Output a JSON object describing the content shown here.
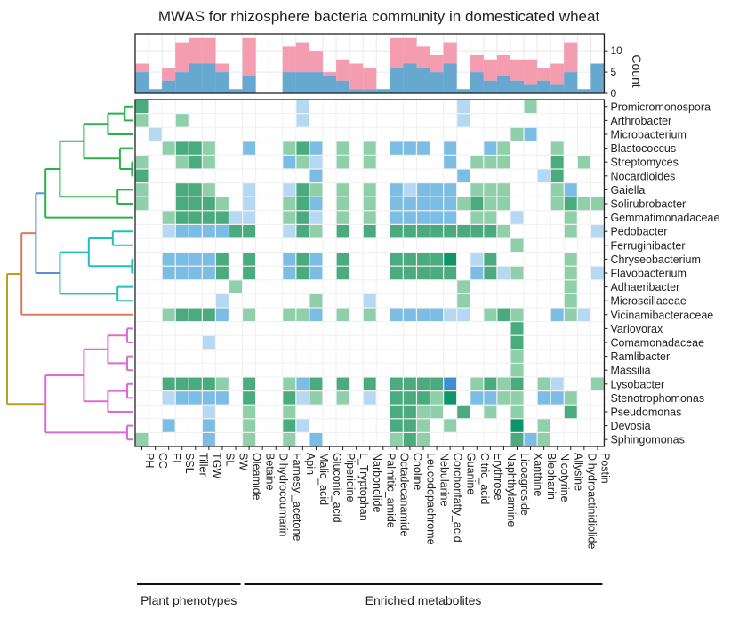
{
  "chart_data": {
    "type": "heatmap",
    "title": "MWAS for rhizosphere bacteria community in domesticated wheat",
    "count_axis": {
      "label": "Count",
      "ticks": [
        0,
        5,
        10
      ],
      "ylim": [
        0,
        14
      ]
    },
    "columns": [
      "PH",
      "CC",
      "EL",
      "SSL",
      "Tiller",
      "TGW",
      "SL",
      "SW",
      "Oleamide",
      "Betaine",
      "Dihydrocoumarin",
      "Farnesyl_acetone",
      "Apin",
      "Malic_acid",
      "Gluconic_acid",
      "Piperidine",
      "L_Tryptophan",
      "Narbonolide",
      "Palmitic_amide",
      "Octadecanamide",
      "Choline",
      "Leucodopachrome",
      "Nebularine",
      "Corchorifatty_acid",
      "Guanine",
      "Citric_acid",
      "Erythrose",
      "Naphthylamine",
      "Licoagroside",
      "Xanthine",
      "Blepharin",
      "Nicotyrine",
      "Allysine",
      "Dihydroactinidiolide",
      "Postin"
    ],
    "rows": [
      "Promicromonospora",
      "Arthrobacter",
      "Microbacterium",
      "Blastococcus",
      "Streptomyces",
      "Nocardioides",
      "Gaiella",
      "Solirubrobacter",
      "Gemmatimonadaceae",
      "Pedobacter",
      "Ferruginibacter",
      "Chryseobacterium",
      "Flavobacterium",
      "Adhaeribacter",
      "Microscillaceae",
      "Vicinamibacteraceae",
      "Variovorax",
      "Comamonadaceae",
      "Ramlibacter",
      "Massilia",
      "Lysobacter",
      "Stenotrophomonas",
      "Pseudomonas",
      "Devosia",
      "Sphingomonas"
    ],
    "bar_series": [
      {
        "color": "#f49db0",
        "values": [
          2,
          0,
          3,
          7,
          6,
          6,
          2,
          0,
          9,
          0,
          0,
          6,
          7,
          5,
          1,
          5,
          6,
          5,
          0,
          7,
          6,
          5,
          4,
          5,
          0,
          4,
          5,
          5,
          5,
          6,
          3,
          5,
          7,
          0,
          0
        ]
      },
      {
        "color": "#66a8d0",
        "values": [
          5,
          1,
          3,
          5,
          7,
          7,
          5,
          1,
          4,
          0,
          0,
          5,
          5,
          5,
          4,
          3,
          1,
          1,
          1,
          6,
          7,
          6,
          5,
          7,
          1,
          5,
          3,
          4,
          3,
          2,
          3,
          2,
          5,
          1,
          7
        ]
      }
    ],
    "cell_palette": [
      "#4aab7f",
      "#8fcfaa",
      "#7cbde6",
      "#b5d9f2",
      "#0c9567",
      "#3f8fd6"
    ],
    "cells": [
      [
        0,
        0,
        0
      ],
      [
        0,
        12,
        3
      ],
      [
        0,
        24,
        3
      ],
      [
        0,
        29,
        1
      ],
      [
        1,
        0,
        1
      ],
      [
        1,
        3,
        1
      ],
      [
        1,
        12,
        3
      ],
      [
        1,
        24,
        3
      ],
      [
        2,
        1,
        3
      ],
      [
        2,
        28,
        1
      ],
      [
        2,
        29,
        2
      ],
      [
        3,
        2,
        1
      ],
      [
        3,
        3,
        0
      ],
      [
        3,
        4,
        0
      ],
      [
        3,
        5,
        1
      ],
      [
        3,
        8,
        2
      ],
      [
        3,
        11,
        1
      ],
      [
        3,
        12,
        0
      ],
      [
        3,
        13,
        2
      ],
      [
        3,
        15,
        1
      ],
      [
        3,
        17,
        1
      ],
      [
        3,
        19,
        2
      ],
      [
        3,
        20,
        2
      ],
      [
        3,
        21,
        2
      ],
      [
        3,
        23,
        2
      ],
      [
        3,
        26,
        2
      ],
      [
        3,
        27,
        1
      ],
      [
        3,
        31,
        1
      ],
      [
        4,
        0,
        1
      ],
      [
        4,
        3,
        1
      ],
      [
        4,
        4,
        0
      ],
      [
        4,
        5,
        1
      ],
      [
        4,
        11,
        2
      ],
      [
        4,
        12,
        1
      ],
      [
        4,
        13,
        3
      ],
      [
        4,
        15,
        1
      ],
      [
        4,
        17,
        1
      ],
      [
        4,
        23,
        2
      ],
      [
        4,
        25,
        1
      ],
      [
        4,
        26,
        1
      ],
      [
        4,
        27,
        1
      ],
      [
        4,
        31,
        0
      ],
      [
        4,
        33,
        1
      ],
      [
        5,
        0,
        0
      ],
      [
        5,
        13,
        2
      ],
      [
        5,
        24,
        2
      ],
      [
        5,
        30,
        3
      ],
      [
        5,
        31,
        0
      ],
      [
        6,
        0,
        1
      ],
      [
        6,
        3,
        0
      ],
      [
        6,
        4,
        0
      ],
      [
        6,
        5,
        1
      ],
      [
        6,
        8,
        3
      ],
      [
        6,
        11,
        3
      ],
      [
        6,
        12,
        0
      ],
      [
        6,
        13,
        1
      ],
      [
        6,
        15,
        1
      ],
      [
        6,
        17,
        1
      ],
      [
        6,
        19,
        2
      ],
      [
        6,
        20,
        3
      ],
      [
        6,
        21,
        2
      ],
      [
        6,
        22,
        2
      ],
      [
        6,
        23,
        2
      ],
      [
        6,
        25,
        1
      ],
      [
        6,
        26,
        1
      ],
      [
        6,
        27,
        1
      ],
      [
        6,
        31,
        1
      ],
      [
        6,
        32,
        2
      ],
      [
        7,
        0,
        1
      ],
      [
        7,
        3,
        0
      ],
      [
        7,
        4,
        0
      ],
      [
        7,
        5,
        0
      ],
      [
        7,
        6,
        1
      ],
      [
        7,
        8,
        3
      ],
      [
        7,
        11,
        1
      ],
      [
        7,
        12,
        0
      ],
      [
        7,
        13,
        2
      ],
      [
        7,
        15,
        1
      ],
      [
        7,
        17,
        1
      ],
      [
        7,
        19,
        2
      ],
      [
        7,
        20,
        2
      ],
      [
        7,
        21,
        2
      ],
      [
        7,
        22,
        2
      ],
      [
        7,
        23,
        2
      ],
      [
        7,
        24,
        1
      ],
      [
        7,
        25,
        0
      ],
      [
        7,
        26,
        1
      ],
      [
        7,
        27,
        1
      ],
      [
        7,
        31,
        1
      ],
      [
        7,
        32,
        0
      ],
      [
        7,
        33,
        1
      ],
      [
        7,
        34,
        1
      ],
      [
        8,
        2,
        1
      ],
      [
        8,
        3,
        0
      ],
      [
        8,
        4,
        0
      ],
      [
        8,
        5,
        0
      ],
      [
        8,
        6,
        0
      ],
      [
        8,
        7,
        3
      ],
      [
        8,
        8,
        3
      ],
      [
        8,
        11,
        1
      ],
      [
        8,
        12,
        0
      ],
      [
        8,
        13,
        3
      ],
      [
        8,
        15,
        1
      ],
      [
        8,
        17,
        1
      ],
      [
        8,
        19,
        2
      ],
      [
        8,
        20,
        2
      ],
      [
        8,
        21,
        2
      ],
      [
        8,
        22,
        2
      ],
      [
        8,
        23,
        2
      ],
      [
        8,
        25,
        1
      ],
      [
        8,
        26,
        1
      ],
      [
        8,
        28,
        3
      ],
      [
        8,
        32,
        1
      ],
      [
        9,
        2,
        3
      ],
      [
        9,
        3,
        2
      ],
      [
        9,
        4,
        2
      ],
      [
        9,
        5,
        2
      ],
      [
        9,
        6,
        2
      ],
      [
        9,
        7,
        0
      ],
      [
        9,
        8,
        0
      ],
      [
        9,
        11,
        3
      ],
      [
        9,
        12,
        0
      ],
      [
        9,
        13,
        1
      ],
      [
        9,
        15,
        0
      ],
      [
        9,
        17,
        0
      ],
      [
        9,
        19,
        0
      ],
      [
        9,
        20,
        0
      ],
      [
        9,
        21,
        0
      ],
      [
        9,
        22,
        0
      ],
      [
        9,
        23,
        0
      ],
      [
        9,
        24,
        0
      ],
      [
        9,
        25,
        0
      ],
      [
        9,
        26,
        0
      ],
      [
        9,
        27,
        1
      ],
      [
        9,
        32,
        1
      ],
      [
        9,
        34,
        3
      ],
      [
        10,
        28,
        1
      ],
      [
        11,
        2,
        2
      ],
      [
        11,
        3,
        2
      ],
      [
        11,
        4,
        2
      ],
      [
        11,
        5,
        2
      ],
      [
        11,
        6,
        0
      ],
      [
        11,
        8,
        0
      ],
      [
        11,
        11,
        2
      ],
      [
        11,
        12,
        0
      ],
      [
        11,
        13,
        2
      ],
      [
        11,
        15,
        0
      ],
      [
        11,
        19,
        0
      ],
      [
        11,
        20,
        0
      ],
      [
        11,
        21,
        0
      ],
      [
        11,
        22,
        0
      ],
      [
        11,
        23,
        4
      ],
      [
        11,
        25,
        3
      ],
      [
        11,
        26,
        0
      ],
      [
        11,
        32,
        1
      ],
      [
        12,
        2,
        2
      ],
      [
        12,
        3,
        2
      ],
      [
        12,
        4,
        2
      ],
      [
        12,
        5,
        2
      ],
      [
        12,
        6,
        0
      ],
      [
        12,
        8,
        0
      ],
      [
        12,
        11,
        2
      ],
      [
        12,
        12,
        0
      ],
      [
        12,
        13,
        2
      ],
      [
        12,
        15,
        0
      ],
      [
        12,
        19,
        0
      ],
      [
        12,
        20,
        0
      ],
      [
        12,
        21,
        0
      ],
      [
        12,
        22,
        0
      ],
      [
        12,
        23,
        0
      ],
      [
        12,
        25,
        2
      ],
      [
        12,
        26,
        0
      ],
      [
        12,
        27,
        3
      ],
      [
        12,
        28,
        1
      ],
      [
        12,
        32,
        1
      ],
      [
        12,
        34,
        3
      ],
      [
        13,
        7,
        1
      ],
      [
        13,
        24,
        1
      ],
      [
        13,
        32,
        1
      ],
      [
        14,
        6,
        3
      ],
      [
        14,
        13,
        1
      ],
      [
        14,
        17,
        3
      ],
      [
        14,
        24,
        1
      ],
      [
        14,
        32,
        1
      ],
      [
        15,
        2,
        1
      ],
      [
        15,
        3,
        0
      ],
      [
        15,
        4,
        0
      ],
      [
        15,
        5,
        0
      ],
      [
        15,
        6,
        2
      ],
      [
        15,
        8,
        1
      ],
      [
        15,
        11,
        1
      ],
      [
        15,
        12,
        1
      ],
      [
        15,
        13,
        2
      ],
      [
        15,
        15,
        1
      ],
      [
        15,
        17,
        1
      ],
      [
        15,
        19,
        2
      ],
      [
        15,
        20,
        2
      ],
      [
        15,
        21,
        2
      ],
      [
        15,
        22,
        2
      ],
      [
        15,
        23,
        3
      ],
      [
        15,
        24,
        3
      ],
      [
        15,
        26,
        1
      ],
      [
        15,
        27,
        0
      ],
      [
        15,
        28,
        1
      ],
      [
        15,
        31,
        2
      ],
      [
        15,
        32,
        1
      ],
      [
        15,
        33,
        3
      ],
      [
        16,
        28,
        0
      ],
      [
        17,
        5,
        3
      ],
      [
        17,
        28,
        0
      ],
      [
        18,
        28,
        1
      ],
      [
        19,
        28,
        1
      ],
      [
        20,
        2,
        0
      ],
      [
        20,
        3,
        0
      ],
      [
        20,
        4,
        0
      ],
      [
        20,
        5,
        0
      ],
      [
        20,
        6,
        1
      ],
      [
        20,
        8,
        0
      ],
      [
        20,
        11,
        1
      ],
      [
        20,
        12,
        2
      ],
      [
        20,
        13,
        0
      ],
      [
        20,
        15,
        0
      ],
      [
        20,
        17,
        0
      ],
      [
        20,
        19,
        0
      ],
      [
        20,
        20,
        0
      ],
      [
        20,
        21,
        0
      ],
      [
        20,
        22,
        0
      ],
      [
        20,
        23,
        5
      ],
      [
        20,
        25,
        1
      ],
      [
        20,
        26,
        0
      ],
      [
        20,
        27,
        1
      ],
      [
        20,
        28,
        0
      ],
      [
        20,
        30,
        1
      ],
      [
        20,
        31,
        3
      ],
      [
        20,
        34,
        1
      ],
      [
        21,
        2,
        3
      ],
      [
        21,
        3,
        2
      ],
      [
        21,
        4,
        2
      ],
      [
        21,
        5,
        2
      ],
      [
        21,
        6,
        2
      ],
      [
        21,
        8,
        0
      ],
      [
        21,
        11,
        0
      ],
      [
        21,
        12,
        3
      ],
      [
        21,
        13,
        1
      ],
      [
        21,
        15,
        1
      ],
      [
        21,
        17,
        3
      ],
      [
        21,
        19,
        0
      ],
      [
        21,
        20,
        0
      ],
      [
        21,
        21,
        0
      ],
      [
        21,
        22,
        1
      ],
      [
        21,
        23,
        4
      ],
      [
        21,
        25,
        2
      ],
      [
        21,
        26,
        2
      ],
      [
        21,
        27,
        1
      ],
      [
        21,
        28,
        1
      ],
      [
        21,
        30,
        2
      ],
      [
        21,
        31,
        2
      ],
      [
        21,
        32,
        1
      ],
      [
        22,
        5,
        3
      ],
      [
        22,
        8,
        1
      ],
      [
        22,
        11,
        1
      ],
      [
        22,
        19,
        0
      ],
      [
        22,
        20,
        0
      ],
      [
        22,
        21,
        1
      ],
      [
        22,
        22,
        1
      ],
      [
        22,
        24,
        0
      ],
      [
        22,
        26,
        1
      ],
      [
        22,
        28,
        1
      ],
      [
        22,
        32,
        0
      ],
      [
        23,
        2,
        2
      ],
      [
        23,
        5,
        2
      ],
      [
        23,
        8,
        1
      ],
      [
        23,
        11,
        0
      ],
      [
        23,
        12,
        3
      ],
      [
        23,
        19,
        0
      ],
      [
        23,
        20,
        0
      ],
      [
        23,
        21,
        1
      ],
      [
        23,
        23,
        1
      ],
      [
        23,
        28,
        4
      ],
      [
        23,
        30,
        1
      ],
      [
        24,
        0,
        1
      ],
      [
        24,
        5,
        2
      ],
      [
        24,
        8,
        1
      ],
      [
        24,
        11,
        1
      ],
      [
        24,
        13,
        2
      ],
      [
        24,
        19,
        1
      ],
      [
        24,
        20,
        0
      ],
      [
        24,
        21,
        1
      ],
      [
        24,
        28,
        0
      ],
      [
        24,
        29,
        2
      ],
      [
        24,
        30,
        1
      ]
    ],
    "dendrogram_colors": [
      "#2ab24a",
      "#5b8fd9",
      "#1fbfbf",
      "#b8a020",
      "#dd6ad9",
      "#e07860"
    ],
    "groups": [
      {
        "label": "Plant phenotypes",
        "from": 0,
        "to": 7
      },
      {
        "label": "Enriched metabolites",
        "from": 8,
        "to": 34
      }
    ]
  }
}
